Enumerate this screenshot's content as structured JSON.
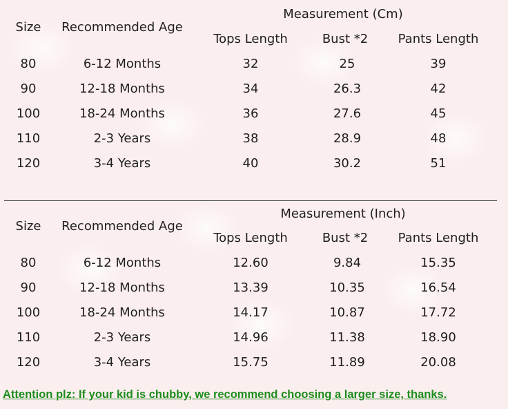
{
  "tables": [
    {
      "group_header": "Measurement (Cm)",
      "headers": {
        "size": "Size",
        "age": "Recommended Age",
        "tops": "Tops Length",
        "bust": "Bust *2",
        "pants": "Pants Length"
      },
      "rows": [
        {
          "size": "80",
          "age": "6-12 Months",
          "tops": "32",
          "bust": "25",
          "pants": "39"
        },
        {
          "size": "90",
          "age": "12-18 Months",
          "tops": "34",
          "bust": "26.3",
          "pants": "42"
        },
        {
          "size": "100",
          "age": "18-24 Months",
          "tops": "36",
          "bust": "27.6",
          "pants": "45"
        },
        {
          "size": "110",
          "age": "2-3 Years",
          "tops": "38",
          "bust": "28.9",
          "pants": "48"
        },
        {
          "size": "120",
          "age": "3-4 Years",
          "tops": "40",
          "bust": "30.2",
          "pants": "51"
        }
      ]
    },
    {
      "group_header": "Measurement (Inch)",
      "headers": {
        "size": "Size",
        "age": "Recommended Age",
        "tops": "Tops Length",
        "bust": "Bust *2",
        "pants": "Pants Length"
      },
      "rows": [
        {
          "size": "80",
          "age": "6-12 Months",
          "tops": "12.60",
          "bust": "9.84",
          "pants": "15.35"
        },
        {
          "size": "90",
          "age": "12-18 Months",
          "tops": "13.39",
          "bust": "10.35",
          "pants": "16.54"
        },
        {
          "size": "100",
          "age": "18-24 Months",
          "tops": "14.17",
          "bust": "10.87",
          "pants": "17.72"
        },
        {
          "size": "110",
          "age": "2-3 Years",
          "tops": "14.96",
          "bust": "11.38",
          "pants": "18.90"
        },
        {
          "size": "120",
          "age": "3-4 Years",
          "tops": "15.75",
          "bust": "11.89",
          "pants": "20.08"
        }
      ]
    }
  ],
  "attention": "Attention plz: If your kid is chubby, we recommend choosing a larger size, thanks.",
  "colors": {
    "attention_text": "#1c8c1c",
    "background": "#fbeeee",
    "text": "#1f1f1f"
  }
}
